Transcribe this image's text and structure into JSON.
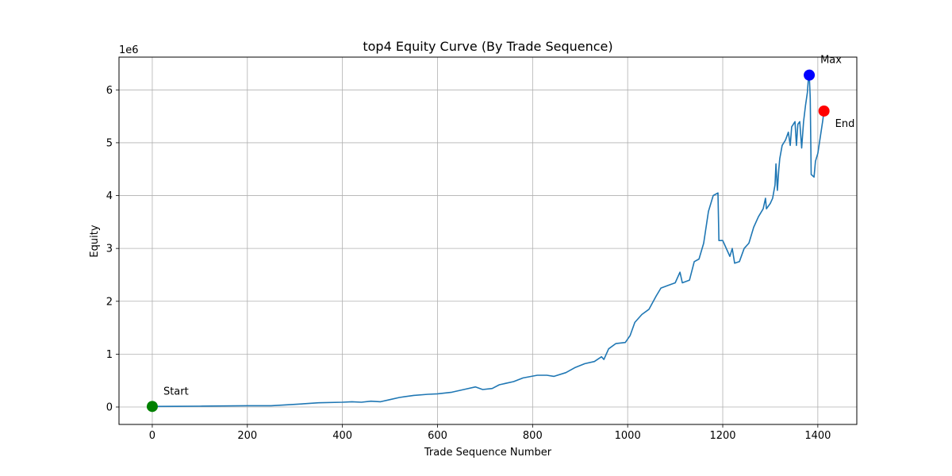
{
  "chart_data": {
    "type": "line",
    "title": "top4 Equity Curve (By Trade Sequence)",
    "xlabel": "Trade Sequence Number",
    "ylabel": "Equity",
    "y_offset_label": "1e6",
    "xlim": [
      -70,
      1482
    ],
    "ylim": [
      -0.33,
      6.62
    ],
    "x_ticks": [
      0,
      200,
      400,
      600,
      800,
      1000,
      1200,
      1400
    ],
    "y_ticks": [
      0,
      1,
      2,
      3,
      4,
      5,
      6
    ],
    "grid": true,
    "line_color": "#1f77b4",
    "series": [
      {
        "name": "",
        "points": [
          [
            0,
            0.01
          ],
          [
            50,
            0.012
          ],
          [
            100,
            0.015
          ],
          [
            150,
            0.02
          ],
          [
            200,
            0.025
          ],
          [
            250,
            0.025
          ],
          [
            300,
            0.05
          ],
          [
            350,
            0.08
          ],
          [
            400,
            0.09
          ],
          [
            420,
            0.1
          ],
          [
            440,
            0.09
          ],
          [
            460,
            0.11
          ],
          [
            480,
            0.1
          ],
          [
            500,
            0.14
          ],
          [
            520,
            0.18
          ],
          [
            550,
            0.22
          ],
          [
            580,
            0.24
          ],
          [
            600,
            0.25
          ],
          [
            630,
            0.28
          ],
          [
            660,
            0.34
          ],
          [
            680,
            0.38
          ],
          [
            695,
            0.33
          ],
          [
            715,
            0.35
          ],
          [
            730,
            0.42
          ],
          [
            760,
            0.48
          ],
          [
            780,
            0.55
          ],
          [
            810,
            0.6
          ],
          [
            830,
            0.6
          ],
          [
            845,
            0.58
          ],
          [
            870,
            0.65
          ],
          [
            890,
            0.75
          ],
          [
            910,
            0.82
          ],
          [
            930,
            0.86
          ],
          [
            945,
            0.95
          ],
          [
            950,
            0.9
          ],
          [
            960,
            1.1
          ],
          [
            975,
            1.2
          ],
          [
            995,
            1.22
          ],
          [
            1005,
            1.35
          ],
          [
            1015,
            1.6
          ],
          [
            1030,
            1.75
          ],
          [
            1045,
            1.85
          ],
          [
            1060,
            2.1
          ],
          [
            1070,
            2.25
          ],
          [
            1085,
            2.3
          ],
          [
            1100,
            2.35
          ],
          [
            1110,
            2.55
          ],
          [
            1115,
            2.35
          ],
          [
            1130,
            2.4
          ],
          [
            1140,
            2.75
          ],
          [
            1150,
            2.8
          ],
          [
            1160,
            3.1
          ],
          [
            1170,
            3.7
          ],
          [
            1180,
            4.0
          ],
          [
            1190,
            4.05
          ],
          [
            1192,
            3.15
          ],
          [
            1200,
            3.15
          ],
          [
            1210,
            2.95
          ],
          [
            1215,
            2.85
          ],
          [
            1220,
            3.0
          ],
          [
            1225,
            2.72
          ],
          [
            1235,
            2.75
          ],
          [
            1245,
            3.0
          ],
          [
            1255,
            3.1
          ],
          [
            1265,
            3.4
          ],
          [
            1275,
            3.6
          ],
          [
            1285,
            3.75
          ],
          [
            1290,
            3.95
          ],
          [
            1292,
            3.75
          ],
          [
            1300,
            3.85
          ],
          [
            1305,
            3.95
          ],
          [
            1310,
            4.2
          ],
          [
            1312,
            4.6
          ],
          [
            1315,
            4.1
          ],
          [
            1318,
            4.5
          ],
          [
            1320,
            4.7
          ],
          [
            1325,
            4.95
          ],
          [
            1332,
            5.05
          ],
          [
            1338,
            5.2
          ],
          [
            1342,
            4.95
          ],
          [
            1345,
            5.3
          ],
          [
            1352,
            5.4
          ],
          [
            1355,
            4.95
          ],
          [
            1358,
            5.35
          ],
          [
            1362,
            5.4
          ],
          [
            1366,
            4.9
          ],
          [
            1370,
            5.4
          ],
          [
            1374,
            5.7
          ],
          [
            1378,
            5.95
          ],
          [
            1380,
            6.2
          ],
          [
            1382,
            6.28
          ],
          [
            1384,
            5.85
          ],
          [
            1386,
            4.4
          ],
          [
            1392,
            4.35
          ],
          [
            1395,
            4.65
          ],
          [
            1400,
            4.8
          ],
          [
            1405,
            5.1
          ],
          [
            1410,
            5.4
          ],
          [
            1413,
            5.6
          ]
        ]
      }
    ],
    "markers": [
      {
        "label": "Start",
        "x": 0,
        "y": 0.01,
        "color": "#008000"
      },
      {
        "label": "Max",
        "x": 1382,
        "y": 6.28,
        "color": "#0000ff"
      },
      {
        "label": "End",
        "x": 1413,
        "y": 5.6,
        "color": "#ff0000"
      }
    ]
  }
}
